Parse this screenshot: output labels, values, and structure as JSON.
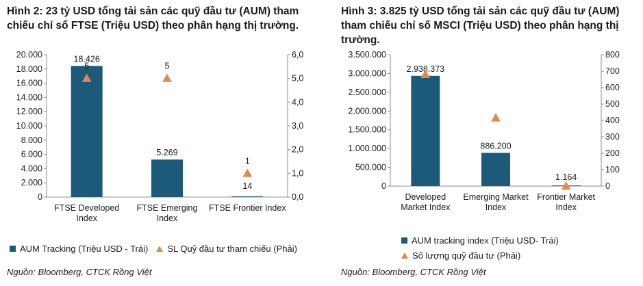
{
  "colors": {
    "bar": "#1d5a7a",
    "marker": "#e08a50",
    "axis": "#8c8c8c"
  },
  "chart_data": [
    {
      "type": "bar",
      "title": "Hình 2: 23 tỷ USD tổng tải sản các quỹ đầu tư (AUM) tham chiếu chỉ số FTSE (Triệu USD) theo phân hạng thị trường.",
      "categories": [
        [
          "FTSE Developed",
          "Index"
        ],
        [
          "FTSE Emerging",
          "Index"
        ],
        [
          "FTSE Frontier Index"
        ]
      ],
      "series": [
        {
          "name": "AUM Tracking (Triệu USD - Trái)",
          "kind": "bar",
          "axis": "left",
          "values": [
            18426,
            5269,
            14
          ],
          "labels": [
            "18.426",
            "5.269",
            "14"
          ]
        },
        {
          "name": "SL Quỹ đầu tư tham chiếu (Phải)",
          "kind": "triangle",
          "axis": "right",
          "values": [
            5,
            5,
            1
          ],
          "labels": [
            "5",
            "5",
            "1"
          ]
        }
      ],
      "ylim_left": [
        0,
        20000
      ],
      "yticks_left": [
        "0",
        "2.000",
        "4.000",
        "6.000",
        "8.000",
        "10.000",
        "12.000",
        "14.000",
        "16.000",
        "18.000",
        "20.000"
      ],
      "ylim_right": [
        0,
        6
      ],
      "yticks_right": [
        "0,0",
        "1,0",
        "2,0",
        "3,0",
        "4,0",
        "5,0",
        "6,0"
      ],
      "legend_position": "bottom",
      "source": "Nguồn: Bloomberg, CTCK Rồng Việt"
    },
    {
      "type": "bar",
      "title": "Hình 3: 3.825 tỷ USD tổng tải sản các quỹ đầu tư (AUM) tham chiếu chỉ số MSCI (Triệu USD) theo phân hạng thị trường.",
      "categories": [
        [
          "Developed",
          "Market Index"
        ],
        [
          "Emerging Market",
          "Index"
        ],
        [
          "Frontier Market",
          "Index"
        ]
      ],
      "series": [
        {
          "name": "AUM tracking index (Triệu USD- Trái)",
          "kind": "bar",
          "axis": "left",
          "values": [
            2938373,
            886200,
            1164
          ],
          "labels": [
            "2.938.373",
            "886.200",
            "1.164"
          ]
        },
        {
          "name": "Số lượng quỹ đầu tư (Phải)",
          "kind": "triangle",
          "axis": "right",
          "values": [
            680,
            415,
            0
          ]
        }
      ],
      "ylim_left": [
        0,
        3500000
      ],
      "yticks_left": [
        "0",
        "500.000",
        "1.000.000",
        "1.500.000",
        "2.000.000",
        "2.500.000",
        "3.000.000",
        "3.500.000"
      ],
      "ylim_right": [
        0,
        800
      ],
      "yticks_right": [
        "0",
        "100",
        "200",
        "300",
        "400",
        "500",
        "600",
        "700",
        "800"
      ],
      "legend_position": "bottom",
      "source": "Nguồn: Bloomberg, CTCK Rồng Việt"
    }
  ]
}
